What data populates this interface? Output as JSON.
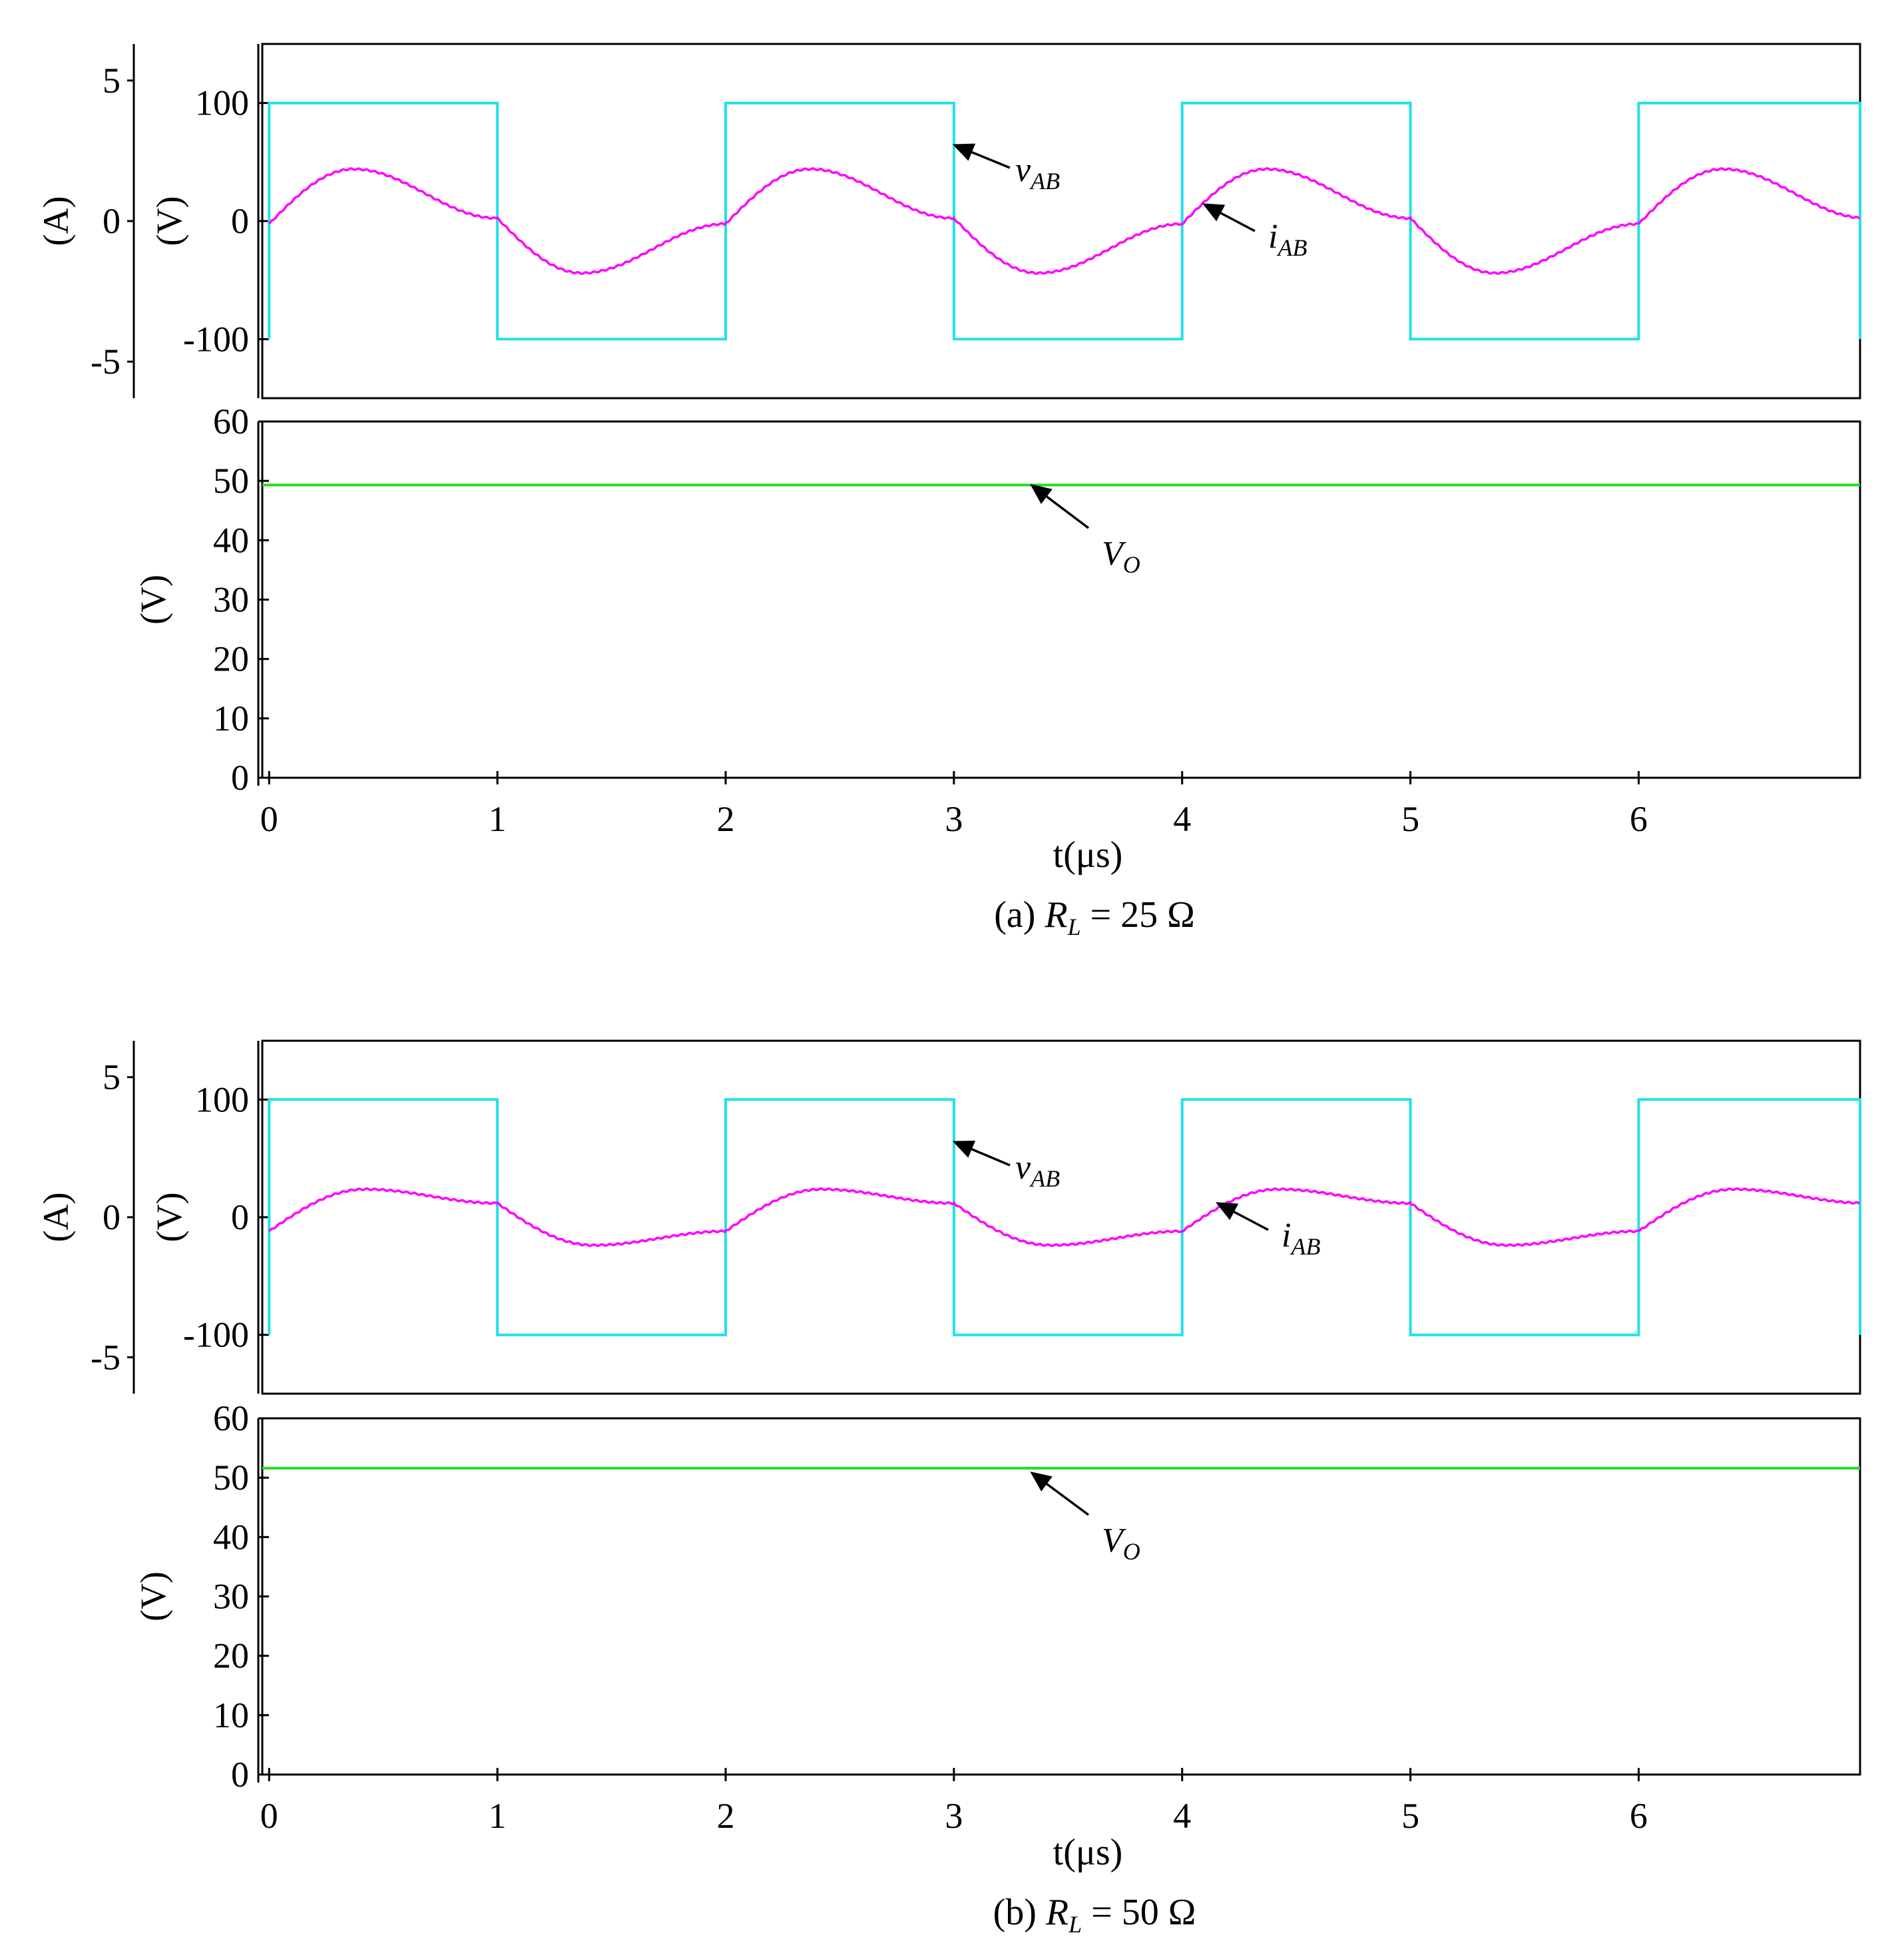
{
  "chart_data": [
    {
      "type": "line",
      "caption": {
        "prefix": "(a) ",
        "var": "R",
        "var_sub": "L",
        "suffix": " = 25 Ω"
      },
      "xlabel": "t(μs)",
      "xlim": [
        -0.03,
        6.97
      ],
      "xticks": [
        "0",
        "1",
        "2",
        "3",
        "4",
        "5",
        "6"
      ],
      "top_panel": {
        "ylabel_left": "(A)",
        "ylabel_right": "(V)",
        "current_axis": {
          "ylim": [
            -6.3,
            6.3
          ],
          "ticks": [
            "5",
            "0",
            "-5"
          ]
        },
        "voltage_axis": {
          "ylim": [
            -150,
            150
          ],
          "ticks": [
            "100",
            "0",
            "-100"
          ]
        },
        "series": [
          {
            "name": "vAB",
            "label": "v",
            "label_sub": "AB",
            "color": "#22e0ea",
            "kind": "square",
            "amplitude_V": 100,
            "period_us": 2
          },
          {
            "name": "iAB",
            "label": "i",
            "label_sub": "AB",
            "color": "#ff00ff",
            "kind": "resonant",
            "peak_A": 1.85,
            "edge_A": 0.1,
            "peak_time_us": 0.37,
            "period_us": 2
          }
        ]
      },
      "bottom_panel": {
        "ylabel": "(V)",
        "ylim": [
          0,
          60
        ],
        "ticks": [
          "60",
          "50",
          "40",
          "30",
          "20",
          "10",
          "0"
        ],
        "series": [
          {
            "name": "VO",
            "label": "V",
            "label_sub": "O",
            "color": "#22dd22",
            "value_V": 49.3
          }
        ]
      }
    },
    {
      "type": "line",
      "caption": {
        "prefix": "(b) ",
        "var": "R",
        "var_sub": "L",
        "suffix": " = 50 Ω"
      },
      "xlabel": "t(μs)",
      "xlim": [
        -0.03,
        6.97
      ],
      "xticks": [
        "0",
        "1",
        "2",
        "3",
        "4",
        "5",
        "6"
      ],
      "top_panel": {
        "ylabel_left": "(A)",
        "ylabel_right": "(V)",
        "current_axis": {
          "ylim": [
            -6.3,
            6.3
          ],
          "ticks": [
            "5",
            "0",
            "-5"
          ]
        },
        "voltage_axis": {
          "ylim": [
            -150,
            150
          ],
          "ticks": [
            "100",
            "0",
            "-100"
          ]
        },
        "series": [
          {
            "name": "vAB",
            "label": "v",
            "label_sub": "AB",
            "color": "#22e0ea",
            "kind": "square",
            "amplitude_V": 100,
            "period_us": 2
          },
          {
            "name": "iAB",
            "label": "i",
            "label_sub": "AB",
            "color": "#ff00ff",
            "kind": "resonant",
            "peak_A": 1.0,
            "edge_A": 0.5,
            "peak_time_us": 0.42,
            "period_us": 2
          }
        ]
      },
      "bottom_panel": {
        "ylabel": "(V)",
        "ylim": [
          0,
          60
        ],
        "ticks": [
          "60",
          "50",
          "40",
          "30",
          "20",
          "10",
          "0"
        ],
        "series": [
          {
            "name": "VO",
            "label": "V",
            "label_sub": "O",
            "color": "#22dd22",
            "value_V": 51.6
          }
        ]
      }
    }
  ]
}
